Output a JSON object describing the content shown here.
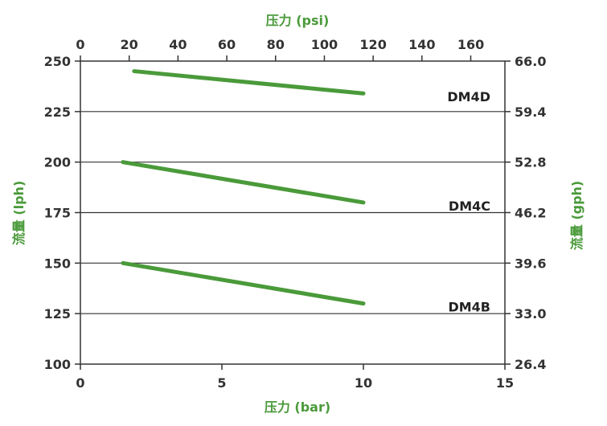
{
  "chart_data": {
    "type": "line",
    "title": "",
    "xlabel": "压力 (bar)",
    "x2label": "压力 (psi)",
    "ylabel": "流量 (lph)",
    "y2label": "流量 (gph)",
    "xlim": [
      0,
      15
    ],
    "x2lim": [
      0,
      174
    ],
    "ylim": [
      100,
      250
    ],
    "xticks": [
      0,
      5,
      10,
      15
    ],
    "x2ticks": [
      0,
      20,
      40,
      60,
      80,
      100,
      120,
      140,
      160
    ],
    "yticks": [
      100,
      125,
      150,
      175,
      200,
      225,
      250
    ],
    "y2ticks": [
      "26.4",
      "33.0",
      "39.6",
      "46.2",
      "52.8",
      "59.4",
      "66.0"
    ],
    "grid": "horizontal",
    "series": [
      {
        "name": "DM4D",
        "x": [
          1.9,
          10.0
        ],
        "y": [
          245,
          234
        ]
      },
      {
        "name": "DM4C",
        "x": [
          1.5,
          10.0
        ],
        "y": [
          200,
          180
        ]
      },
      {
        "name": "DM4B",
        "x": [
          1.5,
          10.0
        ],
        "y": [
          150,
          130
        ]
      }
    ],
    "colors": {
      "line": "#4a9a3a",
      "axis_title": "#4a9a3a",
      "grid": "#333333"
    }
  }
}
